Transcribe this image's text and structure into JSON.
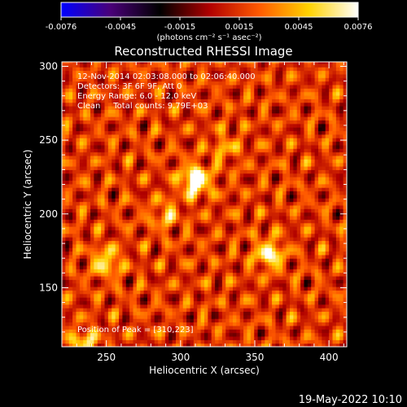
{
  "chart_data": {
    "type": "heatmap",
    "title": "Reconstructed RHESSI Image",
    "xlabel": "Heliocentric X (arcsec)",
    "ylabel": "Heliocentric Y (arcsec)",
    "xlim": [
      220,
      412
    ],
    "ylim": [
      110,
      303
    ],
    "xticks": [
      250,
      300,
      350,
      400
    ],
    "yticks": [
      150,
      200,
      250,
      300
    ],
    "colorbar": {
      "min": -0.0076,
      "max": 0.0076,
      "ticks": [
        "-0.0076",
        "-0.0045",
        "-0.0015",
        "0.0015",
        "0.0045",
        "0.0076"
      ],
      "unit_label": "(photons cm⁻² s⁻¹ asec⁻²)",
      "colormap": [
        "#0000ff",
        "#4a0078",
        "#000000",
        "#b00000",
        "#ff5a00",
        "#ffd200",
        "#ffffff"
      ]
    },
    "annotations": [
      "12-Nov-2014 02:03:08.000 to 02:06:40.000",
      "Detectors: 3F 6F 9F, Att 0",
      "Energy Range: 6.0 - 12.0 keV",
      "Clean     Total counts: 9.79E+03"
    ],
    "peak_label": "Position of Peak = [310,223]",
    "sources": [
      {
        "x": 310,
        "y": 223,
        "intensity": 0.0076
      },
      {
        "x": 360,
        "y": 173,
        "intensity": 0.0055
      },
      {
        "x": 250,
        "y": 168,
        "intensity": 0.0045
      },
      {
        "x": 235,
        "y": 113,
        "intensity": 0.004
      },
      {
        "x": 290,
        "y": 200,
        "intensity": 0.003
      },
      {
        "x": 330,
        "y": 245,
        "intensity": 0.0025
      }
    ]
  },
  "footer": {
    "timestamp": "19-May-2022 10:10"
  }
}
